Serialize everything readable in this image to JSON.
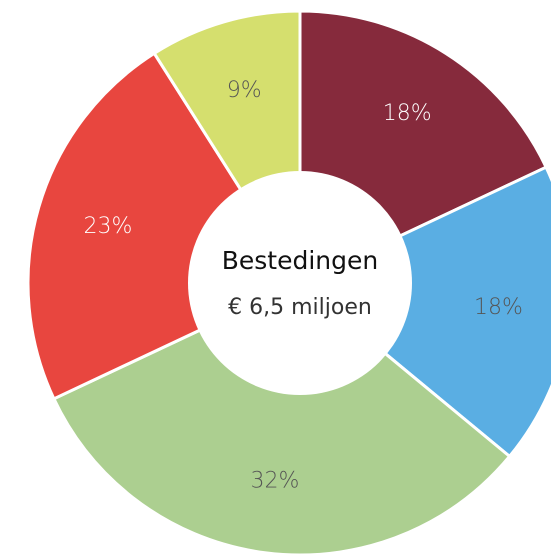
{
  "chart_data": {
    "type": "donut",
    "title": "Bestedingen",
    "subtitle": "€ 6,5 miljoen",
    "values": [
      18,
      18,
      32,
      23,
      9
    ],
    "value_labels": [
      "18%",
      "18%",
      "32%",
      "23%",
      "9%"
    ],
    "colors": [
      "#862a3c",
      "#5aaee3",
      "#accf90",
      "#e8463f",
      "#d5df6e"
    ]
  }
}
